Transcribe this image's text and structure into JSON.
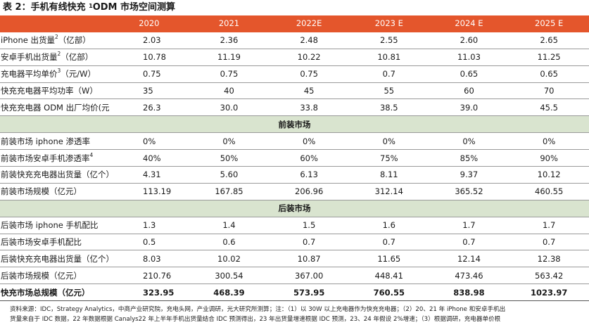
{
  "title": {
    "prefix": "表 2：手机有线快充 ",
    "sup": "1",
    "suffix": "ODM 市场空间测算"
  },
  "columns": [
    "",
    "2020",
    "2021",
    "2022E",
    "2023 E",
    "2024 E",
    "2025 E"
  ],
  "rows_a": [
    {
      "label": "iPhone 出货量",
      "sup": "2",
      "unit": "（亿部）",
      "values": [
        "2.03",
        "2.36",
        "2.48",
        "2.55",
        "2.60",
        "2.65"
      ]
    },
    {
      "label": "安卓手机出货量",
      "sup": "2",
      "unit": "（亿部）",
      "values": [
        "10.78",
        "11.19",
        "10.22",
        "10.81",
        "11.03",
        "11.25"
      ]
    },
    {
      "label": "充电器平均单价",
      "sup": "3",
      "unit": "（元/W）",
      "values": [
        "0.75",
        "0.75",
        "0.75",
        "0.7",
        "0.65",
        "0.65"
      ]
    },
    {
      "label": "快充充电器平均功率（W）",
      "sup": "",
      "unit": "",
      "values": [
        "35",
        "40",
        "45",
        "55",
        "60",
        "70"
      ]
    },
    {
      "label": "快充充电器 ODM 出厂均价(元)",
      "sup": "",
      "unit": "",
      "values": [
        "26.3",
        "30.0",
        "33.8",
        "38.5",
        "39.0",
        "45.5"
      ]
    }
  ],
  "section_b": "前装市场",
  "rows_b": [
    {
      "label": "前装市场 iphone 渗透率",
      "sup": "",
      "unit": "",
      "values": [
        "0%",
        "0%",
        "0%",
        "0%",
        "0%",
        "0%"
      ]
    },
    {
      "label": "前装市场安卓手机渗透率",
      "sup": "4",
      "unit": "",
      "values": [
        "40%",
        "50%",
        "60%",
        "75%",
        "85%",
        "90%"
      ]
    },
    {
      "label": "前装快充充电器出货量（亿个）",
      "sup": "",
      "unit": "",
      "values": [
        "4.31",
        "5.60",
        "6.13",
        "8.11",
        "9.37",
        "10.12"
      ]
    },
    {
      "label": "前装市场规模（亿元）",
      "sup": "",
      "unit": "",
      "values": [
        "113.19",
        "167.85",
        "206.96",
        "312.14",
        "365.52",
        "460.55"
      ]
    }
  ],
  "section_c": "后装市场",
  "rows_c": [
    {
      "label": "后装市场 iphone 手机配比",
      "sup": "",
      "unit": "",
      "values": [
        "1.3",
        "1.4",
        "1.5",
        "1.6",
        "1.7",
        "1.7"
      ]
    },
    {
      "label": "后装市场安卓手机配比",
      "sup": "",
      "unit": "",
      "values": [
        "0.5",
        "0.6",
        "0.7",
        "0.7",
        "0.7",
        "0.7"
      ]
    },
    {
      "label": "后装快充充电器出货量（亿个）",
      "sup": "",
      "unit": "",
      "values": [
        "8.03",
        "10.02",
        "10.87",
        "11.65",
        "12.14",
        "12.38"
      ]
    },
    {
      "label": "后装市场规模（亿元）",
      "sup": "",
      "unit": "",
      "values": [
        "210.76",
        "300.54",
        "367.00",
        "448.41",
        "473.46",
        "563.42"
      ]
    }
  ],
  "total": {
    "label": "快充市场总规模（亿元）",
    "values": [
      "323.95",
      "468.39",
      "573.95",
      "760.55",
      "838.98",
      "1023.97"
    ]
  },
  "notes": [
    "资料来源：IDC，Strategy Analytics，中商产业研究院，充电头网，产业调研，光大研究所测算；注：（1）以 30W 以上充电器作为快充充电器；（2）20、21 年 iPhone 和安卓手机出",
    "货量来自于 IDC 数据，22 年数据根据 Canalys22 年上半年手机出货量结合 IDC 预测得出，23 年出货量增速根据 IDC 预测，23、24 年假设 2%增速；（3）根据调研，充电器单价根"
  ],
  "colors": {
    "header_bg": "#e4562c",
    "section_bg": "#d9e4cf"
  }
}
